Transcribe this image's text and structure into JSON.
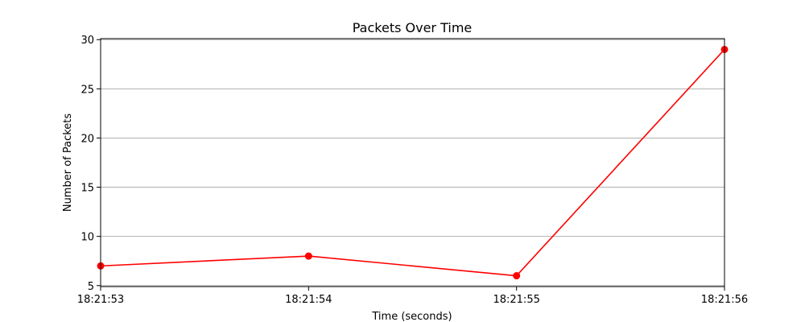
{
  "chart_data": {
    "type": "line",
    "title": "Packets Over Time",
    "xlabel": "Time (seconds)",
    "ylabel": "Number of Packets",
    "categories": [
      "18:21:53",
      "18:21:54",
      "18:21:55",
      "18:21:56"
    ],
    "series": [
      {
        "values": [
          7,
          8,
          6,
          29
        ],
        "color": "#ff0000"
      }
    ],
    "yticks": [
      5,
      10,
      15,
      20,
      25,
      30
    ],
    "ylim": [
      4.9,
      30.1
    ],
    "grid": {
      "y": true,
      "x": false
    },
    "marker": "circle"
  }
}
